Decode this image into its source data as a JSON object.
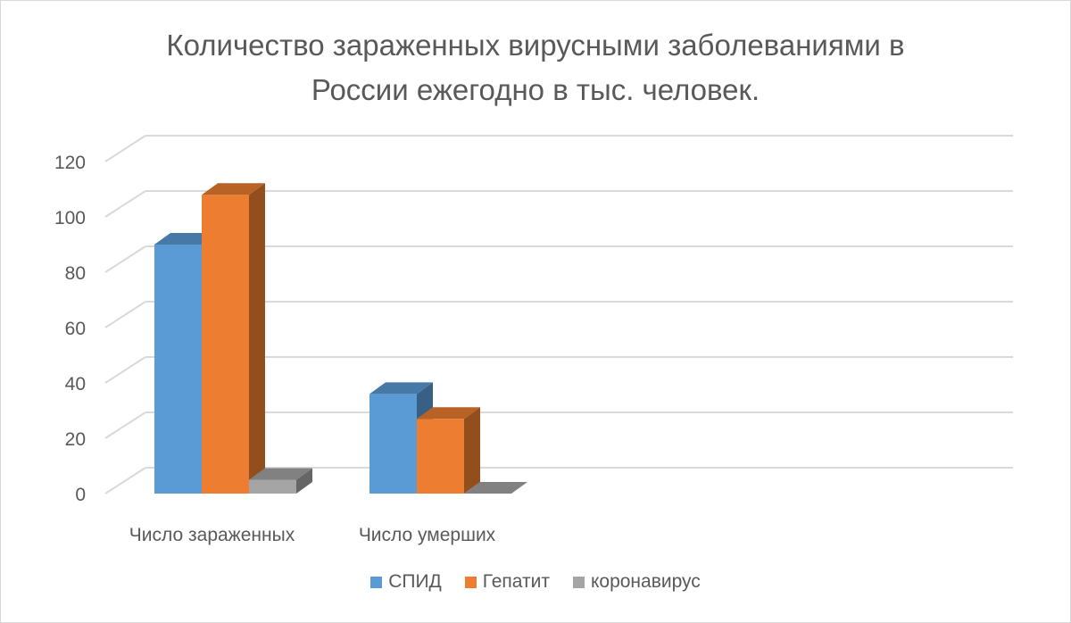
{
  "chart_data": {
    "type": "bar",
    "title": "Количество зараженных вирусными заболеваниями в России ежегодно в тыс. человек.",
    "title_lines": [
      "Количество зараженных вирусными заболеваниями в",
      "России ежегодно в тыс. человек."
    ],
    "categories": [
      "Число зараженных",
      "Число умерших"
    ],
    "series": [
      {
        "name": "СПИД",
        "values": [
          90,
          36
        ],
        "color": "#5b9bd5"
      },
      {
        "name": "Гепатит",
        "values": [
          108,
          27
        ],
        "color": "#ed7d31"
      },
      {
        "name": "коронавирус",
        "values": [
          5,
          0
        ],
        "color": "#a5a5a5"
      }
    ],
    "yticks": [
      "0",
      "20",
      "40",
      "60",
      "80",
      "100",
      "120"
    ],
    "ylim": [
      0,
      120
    ],
    "grid": true,
    "legend_position": "bottom"
  }
}
